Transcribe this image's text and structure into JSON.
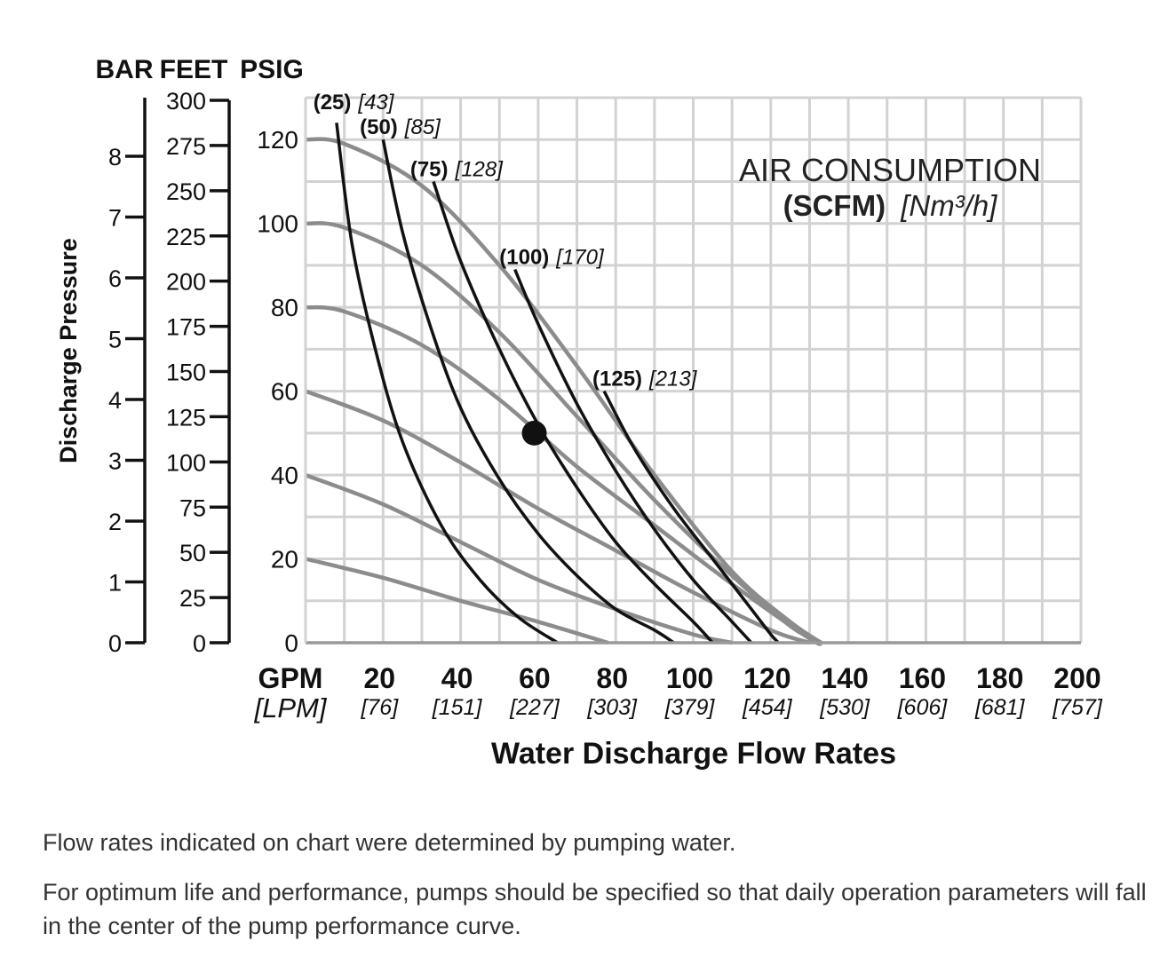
{
  "chart_data": {
    "type": "line",
    "title": "",
    "xlabel": "Water Discharge Flow Rates",
    "ylabel": "Discharge Pressure",
    "xlim": [
      0,
      200
    ],
    "ylim": [
      0,
      130
    ],
    "grid": true,
    "x_axis": {
      "unit_label": "GPM",
      "alt_unit_label": "[LPM]",
      "tick_values": [
        20,
        40,
        60,
        80,
        100,
        120,
        140,
        160,
        180,
        200
      ],
      "tick_labels": [
        "20",
        "40",
        "60",
        "80",
        "100",
        "120",
        "140",
        "160",
        "180",
        "200"
      ],
      "alt_tick_labels": [
        "[76]",
        "[151]",
        "[227]",
        "[303]",
        "[379]",
        "[454]",
        "[530]",
        "[606]",
        "[681]",
        "[757]"
      ]
    },
    "y_axes": {
      "psig": {
        "label": "PSIG",
        "ticks": [
          0,
          20,
          40,
          60,
          80,
          100,
          120
        ],
        "tick_labels": [
          "0",
          "20",
          "40",
          "60",
          "80",
          "100",
          "120"
        ]
      },
      "feet": {
        "label": "FEET",
        "ticks": [
          0,
          25,
          50,
          75,
          100,
          125,
          150,
          175,
          200,
          225,
          250,
          275,
          300
        ],
        "tick_labels": [
          "0",
          "25",
          "50",
          "75",
          "100",
          "125",
          "150",
          "175",
          "200",
          "225",
          "250",
          "275",
          "300"
        ]
      },
      "bar": {
        "label": "BAR",
        "ticks": [
          0,
          1,
          2,
          3,
          4,
          5,
          6,
          7,
          8
        ],
        "tick_labels": [
          "0",
          "1",
          "2",
          "3",
          "4",
          "5",
          "6",
          "7",
          "8"
        ]
      }
    },
    "pressure_curves_color": "#8c8c8c",
    "air_curves_color": "#111111",
    "pressure_curves": [
      {
        "points": [
          [
            0,
            20
          ],
          [
            20,
            15.5
          ],
          [
            40,
            10
          ],
          [
            60,
            5
          ],
          [
            78,
            0
          ]
        ]
      },
      {
        "points": [
          [
            0,
            40
          ],
          [
            20,
            33
          ],
          [
            40,
            24
          ],
          [
            60,
            15
          ],
          [
            80,
            8
          ],
          [
            100,
            2
          ],
          [
            110,
            0
          ]
        ]
      },
      {
        "points": [
          [
            0,
            60
          ],
          [
            20,
            53
          ],
          [
            40,
            43
          ],
          [
            60,
            32
          ],
          [
            80,
            22
          ],
          [
            100,
            12
          ],
          [
            120,
            3
          ],
          [
            130,
            0
          ]
        ]
      },
      {
        "points": [
          [
            0,
            80
          ],
          [
            10,
            79
          ],
          [
            30,
            71
          ],
          [
            50,
            58
          ],
          [
            70,
            42
          ],
          [
            90,
            28
          ],
          [
            110,
            14
          ],
          [
            130,
            1
          ],
          [
            133,
            0
          ]
        ]
      },
      {
        "points": [
          [
            0,
            100
          ],
          [
            10,
            99
          ],
          [
            30,
            90
          ],
          [
            50,
            74
          ],
          [
            70,
            54
          ],
          [
            90,
            34
          ],
          [
            110,
            16
          ],
          [
            125,
            4
          ],
          [
            133,
            0
          ]
        ]
      },
      {
        "points": [
          [
            0,
            120
          ],
          [
            10,
            119
          ],
          [
            30,
            109
          ],
          [
            50,
            90
          ],
          [
            70,
            66
          ],
          [
            90,
            40
          ],
          [
            110,
            17
          ],
          [
            125,
            5
          ],
          [
            133,
            0
          ]
        ]
      }
    ],
    "air_consumption_title": "AIR CONSUMPTION",
    "air_consumption_units_bold": "(SCFM)",
    "air_consumption_units_italic": "[Nm³/h]",
    "air_curves": [
      {
        "label": "(25)",
        "label_alt": "[43]",
        "label_at": [
          2,
          126
        ],
        "points": [
          [
            8,
            124
          ],
          [
            12,
            95
          ],
          [
            18,
            70
          ],
          [
            25,
            48
          ],
          [
            35,
            28
          ],
          [
            45,
            15
          ],
          [
            55,
            6
          ],
          [
            65,
            0
          ]
        ]
      },
      {
        "label": "(50)",
        "label_alt": "[85]",
        "label_at": [
          14,
          120
        ],
        "points": [
          [
            20,
            120
          ],
          [
            25,
            98
          ],
          [
            32,
            76
          ],
          [
            40,
            56
          ],
          [
            50,
            39
          ],
          [
            60,
            26
          ],
          [
            70,
            16
          ],
          [
            80,
            8
          ],
          [
            90,
            3
          ],
          [
            95,
            0
          ]
        ]
      },
      {
        "label": "(75)",
        "label_alt": "[128]",
        "label_at": [
          27,
          110
        ],
        "points": [
          [
            33,
            110
          ],
          [
            40,
            91
          ],
          [
            50,
            70
          ],
          [
            60,
            52
          ],
          [
            70,
            37
          ],
          [
            80,
            24
          ],
          [
            90,
            14
          ],
          [
            100,
            5
          ],
          [
            105,
            0
          ]
        ]
      },
      {
        "label": "(100)",
        "label_alt": "[170]",
        "label_at": [
          50,
          89
        ],
        "points": [
          [
            54,
            89
          ],
          [
            60,
            76
          ],
          [
            70,
            57
          ],
          [
            80,
            41
          ],
          [
            90,
            27
          ],
          [
            100,
            15
          ],
          [
            110,
            5
          ],
          [
            115,
            0
          ]
        ]
      },
      {
        "label": "(125)",
        "label_alt": "[213]",
        "label_at": [
          74,
          60
        ],
        "points": [
          [
            77,
            60
          ],
          [
            85,
            46
          ],
          [
            95,
            32
          ],
          [
            105,
            20
          ],
          [
            115,
            8
          ],
          [
            120,
            2
          ],
          [
            122,
            0
          ]
        ]
      }
    ],
    "marked_point": [
      59,
      50
    ]
  },
  "notes": [
    "Flow rates indicated on chart were determined by pumping water.",
    "For optimum life and performance, pumps should be specified so that daily operation parameters will fall in the center of the pump performance curve."
  ]
}
